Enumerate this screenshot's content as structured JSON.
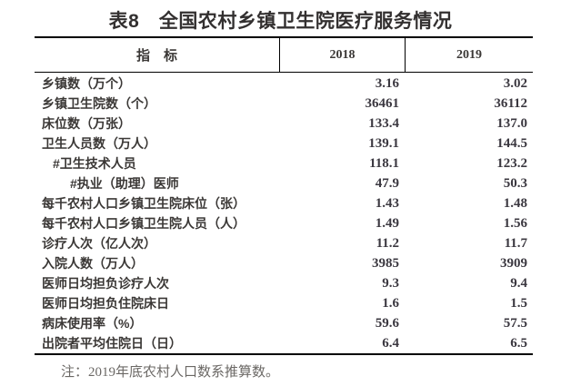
{
  "title": "表8　全国农村乡镇卫生院医疗服务情况",
  "note": "注：2019年底农村人口数系推算数。",
  "colors": {
    "background": "#ffffff",
    "title_text": "#333030",
    "body_text": "#3b3836",
    "number_text": "#3b3840",
    "note_text": "#6b6865",
    "border": "#000000"
  },
  "table": {
    "columns": [
      "指　标",
      "2018",
      "2019"
    ],
    "rows": [
      {
        "label": "乡镇数（万个）",
        "v2018": "3.16",
        "v2019": "3.02",
        "indent": 0
      },
      {
        "label": "乡镇卫生院数（个）",
        "v2018": "36461",
        "v2019": "36112",
        "indent": 0
      },
      {
        "label": "床位数（万张）",
        "v2018": "133.4",
        "v2019": "137.0",
        "indent": 0
      },
      {
        "label": "卫生人员数（万人）",
        "v2018": "139.1",
        "v2019": "144.5",
        "indent": 0
      },
      {
        "label": "#卫生技术人员",
        "v2018": "118.1",
        "v2019": "123.2",
        "indent": 1
      },
      {
        "label": "#执业（助理）医师",
        "v2018": "47.9",
        "v2019": "50.3",
        "indent": 2
      },
      {
        "label": "每千农村人口乡镇卫生院床位（张）",
        "v2018": "1.43",
        "v2019": "1.48",
        "indent": 0
      },
      {
        "label": "每千农村人口乡镇卫生院人员（人）",
        "v2018": "1.49",
        "v2019": "1.56",
        "indent": 0
      },
      {
        "label": "诊疗人次（亿人次）",
        "v2018": "11.2",
        "v2019": "11.7",
        "indent": 0
      },
      {
        "label": "入院人数（万人）",
        "v2018": "3985",
        "v2019": "3909",
        "indent": 0
      },
      {
        "label": "医师日均担负诊疗人次",
        "v2018": "9.3",
        "v2019": "9.4",
        "indent": 0
      },
      {
        "label": "医师日均担负住院床日",
        "v2018": "1.6",
        "v2019": "1.5",
        "indent": 0
      },
      {
        "label": "病床使用率（%）",
        "v2018": "59.6",
        "v2019": "57.5",
        "indent": 0
      },
      {
        "label": "出院者平均住院日（日）",
        "v2018": "6.4",
        "v2019": "6.5",
        "indent": 0
      }
    ]
  }
}
